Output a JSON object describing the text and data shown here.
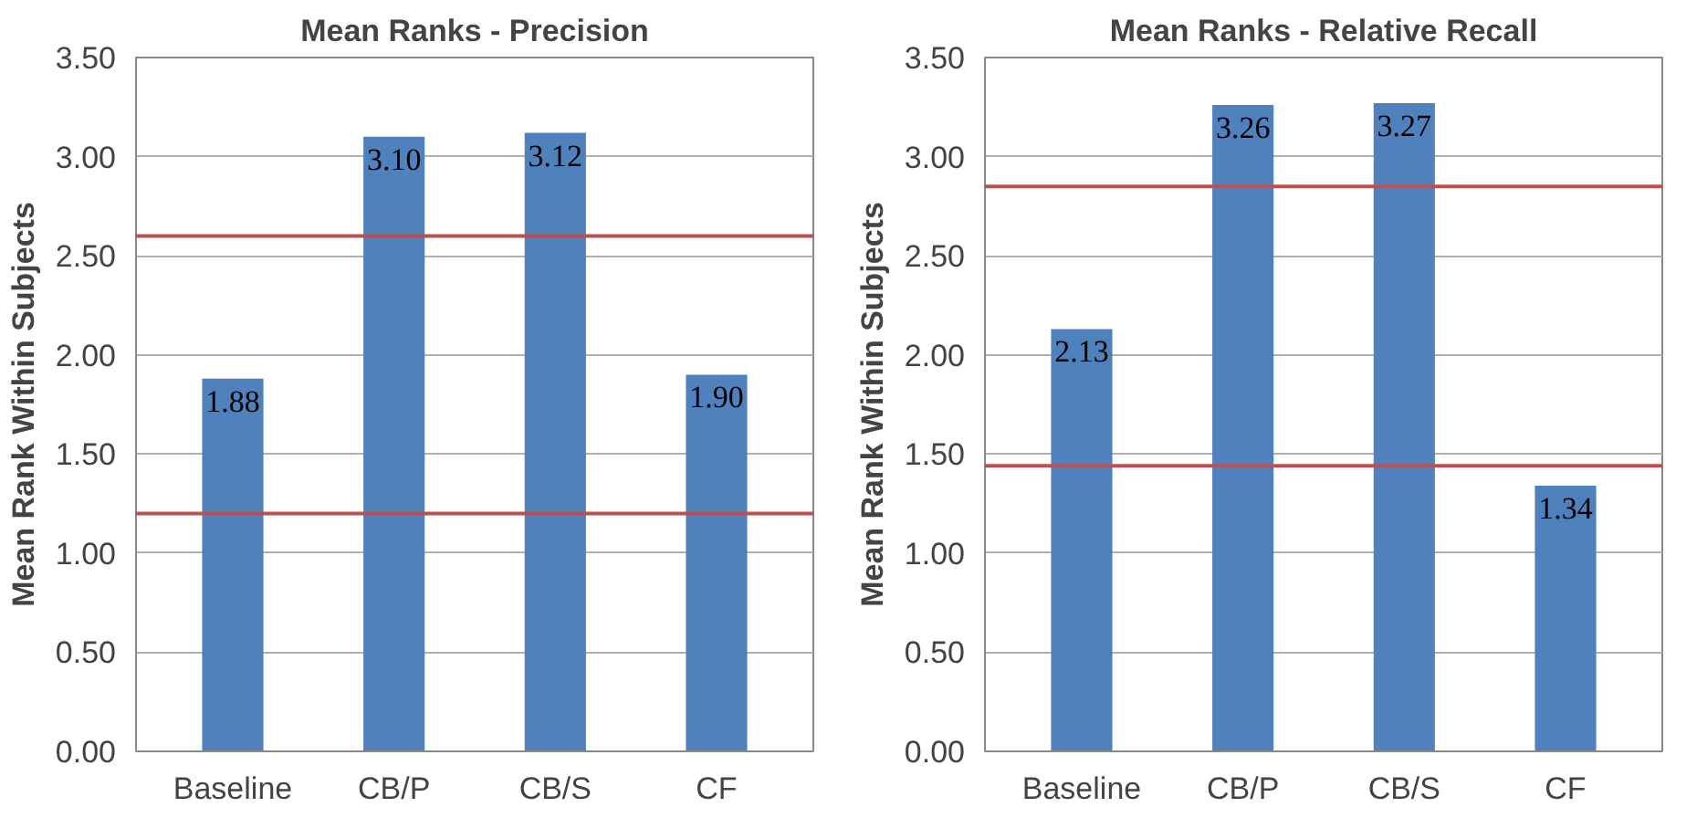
{
  "chart_data": [
    {
      "type": "bar",
      "title": "Mean Ranks - Precision",
      "ylabel": "Mean Rank Within Subjects",
      "categories": [
        "Baseline",
        "CB/P",
        "CB/S",
        "CF"
      ],
      "values": [
        1.88,
        3.1,
        3.12,
        1.9
      ],
      "color": "#4f81bd",
      "value_labels": [
        "1.88",
        "3.10",
        "3.12",
        "1.90"
      ],
      "ylim": [
        0,
        3.5
      ],
      "yticks": [
        {
          "value": 0,
          "label": "0.00"
        },
        {
          "value": 0.5,
          "label": "0.50"
        },
        {
          "value": 1,
          "label": "1.00"
        },
        {
          "value": 1.5,
          "label": "1.50"
        },
        {
          "value": 2,
          "label": "2.00"
        },
        {
          "value": 2.5,
          "label": "2.50"
        },
        {
          "value": 3,
          "label": "3.00"
        },
        {
          "value": 3.5,
          "label": "3.50"
        }
      ],
      "grid": "y",
      "ref_lines": [
        {
          "axis": "y",
          "value": 2.6,
          "color": "#c0504d"
        },
        {
          "axis": "y",
          "value": 1.2,
          "color": "#c0504d"
        }
      ]
    },
    {
      "type": "bar",
      "title": "Mean Ranks - Relative Recall",
      "ylabel": "Mean Rank Within Subjects",
      "categories": [
        "Baseline",
        "CB/P",
        "CB/S",
        "CF"
      ],
      "values": [
        2.13,
        3.26,
        3.27,
        1.34
      ],
      "color": "#4f81bd",
      "value_labels": [
        "2.13",
        "3.26",
        "3.27",
        "1.34"
      ],
      "ylim": [
        0,
        3.5
      ],
      "yticks": [
        {
          "value": 0,
          "label": "0.00"
        },
        {
          "value": 0.5,
          "label": "0.50"
        },
        {
          "value": 1,
          "label": "1.00"
        },
        {
          "value": 1.5,
          "label": "1.50"
        },
        {
          "value": 2,
          "label": "2.00"
        },
        {
          "value": 2.5,
          "label": "2.50"
        },
        {
          "value": 3,
          "label": "3.00"
        },
        {
          "value": 3.5,
          "label": "3.50"
        }
      ],
      "grid": "y",
      "ref_lines": [
        {
          "axis": "y",
          "value": 2.85,
          "color": "#c0504d"
        },
        {
          "axis": "y",
          "value": 1.44,
          "color": "#c0504d"
        }
      ]
    }
  ]
}
